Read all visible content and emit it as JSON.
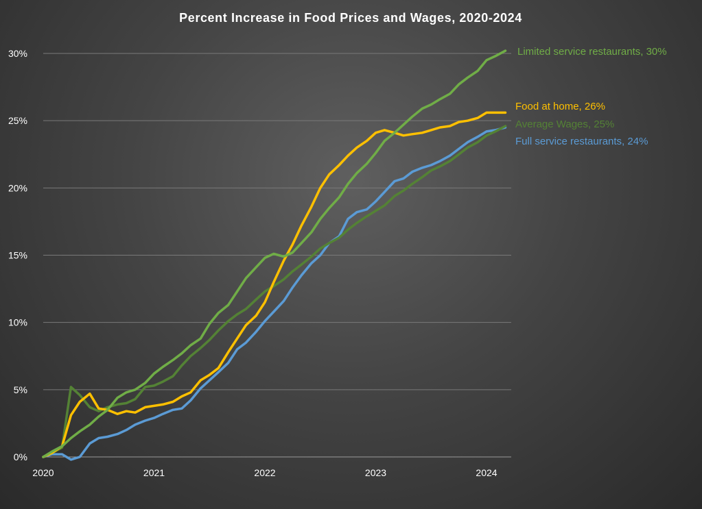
{
  "chart_data": {
    "type": "line",
    "title": "Percent Increase in Food Prices and Wages, 2020-2024",
    "xlabel": "",
    "ylabel": "",
    "xlim": [
      2020,
      2024.25
    ],
    "ylim": [
      0,
      30
    ],
    "grid": true,
    "x_ticks": [
      {
        "value": 2020,
        "label": "2020"
      },
      {
        "value": 2021,
        "label": "2021"
      },
      {
        "value": 2022,
        "label": "2022"
      },
      {
        "value": 2023,
        "label": "2023"
      },
      {
        "value": 2024,
        "label": "2024"
      }
    ],
    "y_ticks": [
      {
        "value": 0,
        "label": "0%"
      },
      {
        "value": 5,
        "label": "5%"
      },
      {
        "value": 10,
        "label": "10%"
      },
      {
        "value": 15,
        "label": "15%"
      },
      {
        "value": 20,
        "label": "20%"
      },
      {
        "value": 25,
        "label": "25%"
      },
      {
        "value": 30,
        "label": "30%"
      }
    ],
    "series": [
      {
        "name": "Full service restaurants",
        "label": "Full service restaurants, 24%",
        "color": "#5b9bd5",
        "x": [
          2020.0,
          2020.08,
          2020.17,
          2020.25,
          2020.33,
          2020.42,
          2020.5,
          2020.58,
          2020.67,
          2020.75,
          2020.83,
          2020.92,
          2021.0,
          2021.08,
          2021.17,
          2021.25,
          2021.33,
          2021.42,
          2021.5,
          2021.58,
          2021.67,
          2021.75,
          2021.83,
          2021.92,
          2022.0,
          2022.08,
          2022.17,
          2022.25,
          2022.33,
          2022.42,
          2022.5,
          2022.58,
          2022.67,
          2022.75,
          2022.83,
          2022.92,
          2023.0,
          2023.08,
          2023.17,
          2023.25,
          2023.33,
          2023.42,
          2023.5,
          2023.58,
          2023.67,
          2023.75,
          2023.83,
          2023.92,
          2024.0,
          2024.08,
          2024.17
        ],
        "values": [
          0,
          0.2,
          0.2,
          -0.2,
          0,
          1.0,
          1.4,
          1.5,
          1.7,
          2.0,
          2.4,
          2.7,
          2.9,
          3.2,
          3.5,
          3.6,
          4.2,
          5.1,
          5.7,
          6.3,
          7.0,
          8.0,
          8.5,
          9.3,
          10.1,
          10.8,
          11.6,
          12.6,
          13.5,
          14.4,
          15.0,
          15.9,
          16.4,
          17.7,
          18.2,
          18.4,
          19.0,
          19.7,
          20.5,
          20.7,
          21.2,
          21.5,
          21.7,
          22.0,
          22.4,
          22.9,
          23.4,
          23.8,
          24.2,
          24.3,
          24.5
        ]
      },
      {
        "name": "Average Wages",
        "label": "Average Wages, 25%",
        "color": "#548235",
        "x": [
          2020.0,
          2020.08,
          2020.17,
          2020.25,
          2020.33,
          2020.42,
          2020.5,
          2020.58,
          2020.67,
          2020.75,
          2020.83,
          2020.92,
          2021.0,
          2021.08,
          2021.17,
          2021.25,
          2021.33,
          2021.42,
          2021.5,
          2021.58,
          2021.67,
          2021.75,
          2021.83,
          2021.92,
          2022.0,
          2022.08,
          2022.17,
          2022.25,
          2022.33,
          2022.42,
          2022.5,
          2022.58,
          2022.67,
          2022.75,
          2022.83,
          2022.92,
          2023.0,
          2023.08,
          2023.17,
          2023.25,
          2023.33,
          2023.42,
          2023.5,
          2023.58,
          2023.67,
          2023.75,
          2023.83,
          2023.92,
          2024.0,
          2024.08,
          2024.17
        ],
        "values": [
          0,
          0.3,
          0.7,
          5.2,
          4.6,
          3.7,
          3.4,
          3.7,
          3.9,
          4.0,
          4.3,
          5.2,
          5.3,
          5.6,
          6.0,
          6.8,
          7.5,
          8.1,
          8.7,
          9.4,
          10.1,
          10.6,
          11.0,
          11.7,
          12.3,
          12.7,
          13.2,
          13.8,
          14.3,
          14.9,
          15.5,
          15.9,
          16.3,
          16.9,
          17.4,
          17.9,
          18.3,
          18.7,
          19.4,
          19.8,
          20.3,
          20.8,
          21.3,
          21.6,
          22.0,
          22.5,
          23.0,
          23.4,
          23.9,
          24.2,
          24.6
        ]
      },
      {
        "name": "Food at home",
        "label": "Food at home, 26%",
        "color": "#ffc000",
        "x": [
          2020.0,
          2020.08,
          2020.17,
          2020.25,
          2020.33,
          2020.42,
          2020.5,
          2020.58,
          2020.67,
          2020.75,
          2020.83,
          2020.92,
          2021.0,
          2021.08,
          2021.17,
          2021.25,
          2021.33,
          2021.42,
          2021.5,
          2021.58,
          2021.67,
          2021.75,
          2021.83,
          2021.92,
          2022.0,
          2022.08,
          2022.17,
          2022.25,
          2022.33,
          2022.42,
          2022.5,
          2022.58,
          2022.67,
          2022.75,
          2022.83,
          2022.92,
          2023.0,
          2023.08,
          2023.17,
          2023.25,
          2023.33,
          2023.42,
          2023.5,
          2023.58,
          2023.67,
          2023.75,
          2023.83,
          2023.92,
          2024.0,
          2024.08,
          2024.17
        ],
        "values": [
          0,
          0.3,
          0.8,
          3.1,
          4.1,
          4.7,
          3.6,
          3.5,
          3.2,
          3.4,
          3.3,
          3.7,
          3.8,
          3.9,
          4.1,
          4.5,
          4.8,
          5.7,
          6.1,
          6.6,
          7.8,
          8.8,
          9.8,
          10.5,
          11.5,
          13.0,
          14.6,
          15.8,
          17.2,
          18.6,
          20.0,
          21.0,
          21.7,
          22.4,
          23.0,
          23.5,
          24.1,
          24.3,
          24.1,
          23.9,
          24.0,
          24.1,
          24.3,
          24.5,
          24.6,
          24.9,
          25.0,
          25.2,
          25.6,
          25.6,
          25.6
        ]
      },
      {
        "name": "Limited service restaurants",
        "label": "Limited service restaurants, 30%",
        "color": "#70ad47",
        "x": [
          2020.0,
          2020.08,
          2020.17,
          2020.25,
          2020.33,
          2020.42,
          2020.5,
          2020.58,
          2020.67,
          2020.75,
          2020.83,
          2020.92,
          2021.0,
          2021.08,
          2021.17,
          2021.25,
          2021.33,
          2021.42,
          2021.5,
          2021.58,
          2021.67,
          2021.75,
          2021.83,
          2021.92,
          2022.0,
          2022.08,
          2022.17,
          2022.25,
          2022.33,
          2022.42,
          2022.5,
          2022.58,
          2022.67,
          2022.75,
          2022.83,
          2022.92,
          2023.0,
          2023.08,
          2023.17,
          2023.25,
          2023.33,
          2023.42,
          2023.5,
          2023.58,
          2023.67,
          2023.75,
          2023.83,
          2023.92,
          2024.0,
          2024.08,
          2024.17
        ],
        "values": [
          0,
          0.4,
          0.8,
          1.4,
          1.9,
          2.4,
          3.0,
          3.5,
          4.4,
          4.8,
          5.0,
          5.5,
          6.2,
          6.7,
          7.2,
          7.7,
          8.3,
          8.8,
          9.9,
          10.7,
          11.3,
          12.3,
          13.3,
          14.1,
          14.8,
          15.1,
          14.9,
          15.2,
          15.9,
          16.7,
          17.7,
          18.5,
          19.3,
          20.3,
          21.1,
          21.8,
          22.6,
          23.5,
          24.1,
          24.7,
          25.3,
          25.9,
          26.2,
          26.6,
          27.0,
          27.7,
          28.2,
          28.7,
          29.5,
          29.8,
          30.2
        ]
      }
    ]
  }
}
